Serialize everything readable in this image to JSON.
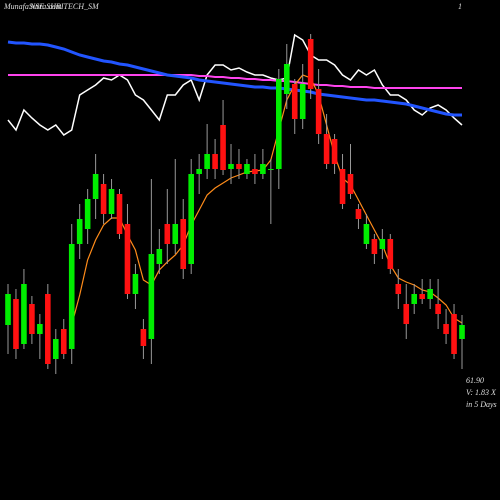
{
  "chart_data": {
    "type": "candlestick",
    "watermark": "MunafaSutra.com",
    "title": "NSE SHRITECH_SM",
    "corner_label": "1",
    "info": [
      "61.90",
      "V: 1.83 X",
      "in 5 Days"
    ],
    "ylim": [
      44.4,
      94.4
    ],
    "up_color": "#00ee00",
    "down_color": "#ff1111",
    "open": [
      61.9,
      64.5,
      60.0,
      64.0,
      61.0,
      65.0,
      58.5,
      61.5,
      59.5,
      70.0,
      71.5,
      74.5,
      76.0,
      73.0,
      75.0,
      72.0,
      65.0,
      61.5,
      60.5,
      68.0,
      72.0,
      70.0,
      72.5,
      68.0,
      77.0,
      77.5,
      79.0,
      81.9,
      77.5,
      78.0,
      77.0,
      77.5,
      77.0,
      77.5,
      77.5,
      85.0,
      86.0,
      82.5,
      90.5,
      85.5,
      81.0,
      80.5,
      77.5,
      77.0,
      73.5,
      70.0,
      70.5,
      69.5,
      70.5,
      66.0,
      64.0,
      64.0,
      65.0,
      64.5,
      64.0,
      62.0,
      63.0,
      60.5
    ],
    "high": [
      66.0,
      65.5,
      67.5,
      64.8,
      63.0,
      66.0,
      61.5,
      62.5,
      72.0,
      74.0,
      75.5,
      79.0,
      77.0,
      76.5,
      75.5,
      74.0,
      68.0,
      62.5,
      76.5,
      71.5,
      75.5,
      78.5,
      74.5,
      78.5,
      79.0,
      82.0,
      80.5,
      84.4,
      80.0,
      79.5,
      78.5,
      79.0,
      79.5,
      78.5,
      87.5,
      90.0,
      86.5,
      88.0,
      91.0,
      87.5,
      83.0,
      81.0,
      79.0,
      80.0,
      74.0,
      73.0,
      71.0,
      71.5,
      71.0,
      67.5,
      66.0,
      66.0,
      66.5,
      66.5,
      66.5,
      63.5,
      64.0,
      62.9
    ],
    "low": [
      59.0,
      58.5,
      59.5,
      60.0,
      58.5,
      57.5,
      57.0,
      58.5,
      58.0,
      68.5,
      70.0,
      72.5,
      72.0,
      72.5,
      70.5,
      64.5,
      63.5,
      58.5,
      58.0,
      67.0,
      68.0,
      69.0,
      66.5,
      67.0,
      75.0,
      76.5,
      76.5,
      76.9,
      76.0,
      76.5,
      76.5,
      76.0,
      76.5,
      72.0,
      75.5,
      83.5,
      81.0,
      81.5,
      84.5,
      80.0,
      77.5,
      77.0,
      73.5,
      74.5,
      71.5,
      69.5,
      68.0,
      68.5,
      67.0,
      63.5,
      60.5,
      63.0,
      64.0,
      63.5,
      61.5,
      60.0,
      58.5,
      57.5
    ],
    "close": [
      65.0,
      59.5,
      66.0,
      61.0,
      62.0,
      58.0,
      60.5,
      59.0,
      70.0,
      72.5,
      74.5,
      77.0,
      73.0,
      75.5,
      71.0,
      65.0,
      67.0,
      59.8,
      69.0,
      69.5,
      70.0,
      72.0,
      67.5,
      77.0,
      77.5,
      79.0,
      77.5,
      77.4,
      78.0,
      77.5,
      78.0,
      77.0,
      78.0,
      77.5,
      86.5,
      88.0,
      82.5,
      86.0,
      85.5,
      81.0,
      78.0,
      78.0,
      74.0,
      75.0,
      72.5,
      72.0,
      69.0,
      70.5,
      67.5,
      65.0,
      62.0,
      65.0,
      64.5,
      65.5,
      63.0,
      61.0,
      59.0,
      61.9
    ],
    "overlays": [
      {
        "color": "#ffffff",
        "width": 1.5,
        "values": [
          82.4,
          81.4,
          83.4,
          82.6,
          81.9,
          81.4,
          81.9,
          80.9,
          81.4,
          84.9,
          85.4,
          85.9,
          86.6,
          86.4,
          86.9,
          86.4,
          84.9,
          84.4,
          83.4,
          82.4,
          84.9,
          84.9,
          85.9,
          86.4,
          84.4,
          86.9,
          87.9,
          87.9,
          87.4,
          87.6,
          87.2,
          86.9,
          86.9,
          86.6,
          86.4,
          86.6,
          90.9,
          90.4,
          88.9,
          88.4,
          88.4,
          87.9,
          86.9,
          86.4,
          87.4,
          86.9,
          87.4,
          85.9,
          84.9,
          84.9,
          84.4,
          83.4,
          82.9,
          83.6,
          83.9,
          83.4,
          82.6,
          81.9
        ]
      },
      {
        "color": "#ff44ee",
        "width": 2,
        "values": [
          86.9,
          86.9,
          86.9,
          86.9,
          86.9,
          86.9,
          86.9,
          86.9,
          86.9,
          86.9,
          86.9,
          86.9,
          86.9,
          86.9,
          86.9,
          86.9,
          86.9,
          86.9,
          86.9,
          86.9,
          86.9,
          86.9,
          86.9,
          86.9,
          86.8,
          86.8,
          86.7,
          86.7,
          86.6,
          86.6,
          86.5,
          86.5,
          86.4,
          86.4,
          86.3,
          86.3,
          86.2,
          86.1,
          86.0,
          85.9,
          85.9,
          85.8,
          85.8,
          85.7,
          85.7,
          85.7,
          85.6,
          85.6,
          85.6,
          85.6,
          85.6,
          85.6,
          85.6,
          85.6,
          85.6,
          85.6,
          85.6,
          85.6
        ]
      },
      {
        "color": "#2255ff",
        "width": 3,
        "values": [
          90.2,
          90.1,
          90.1,
          90.0,
          90.0,
          89.9,
          89.7,
          89.5,
          89.2,
          88.9,
          88.7,
          88.5,
          88.3,
          88.2,
          88.0,
          87.9,
          87.7,
          87.5,
          87.3,
          87.1,
          86.9,
          86.8,
          86.7,
          86.6,
          86.4,
          86.3,
          86.2,
          86.1,
          86.0,
          85.9,
          85.8,
          85.7,
          85.7,
          85.6,
          85.6,
          85.5,
          85.4,
          85.3,
          85.2,
          85.0,
          84.9,
          84.8,
          84.7,
          84.6,
          84.5,
          84.4,
          84.4,
          84.3,
          84.2,
          84.1,
          84.0,
          83.8,
          83.6,
          83.4,
          83.2,
          83.0,
          82.9,
          82.9
        ]
      },
      {
        "color": "#ff8c1a",
        "width": 1.2,
        "values": [
          null,
          null,
          null,
          null,
          null,
          null,
          null,
          null,
          61.9,
          64.9,
          68.4,
          70.4,
          71.9,
          72.6,
          72.6,
          70.9,
          69.4,
          66.4,
          65.9,
          67.4,
          68.2,
          68.9,
          69.9,
          71.9,
          73.4,
          74.9,
          75.6,
          76.1,
          76.6,
          76.9,
          77.2,
          77.3,
          77.4,
          78.4,
          81.4,
          84.4,
          85.9,
          86.9,
          86.6,
          84.9,
          81.9,
          78.9,
          76.6,
          75.9,
          74.4,
          72.9,
          71.4,
          69.9,
          67.9,
          66.6,
          66.2,
          65.9,
          65.4,
          65.2,
          64.6,
          63.9,
          62.6,
          62.1
        ]
      }
    ]
  }
}
